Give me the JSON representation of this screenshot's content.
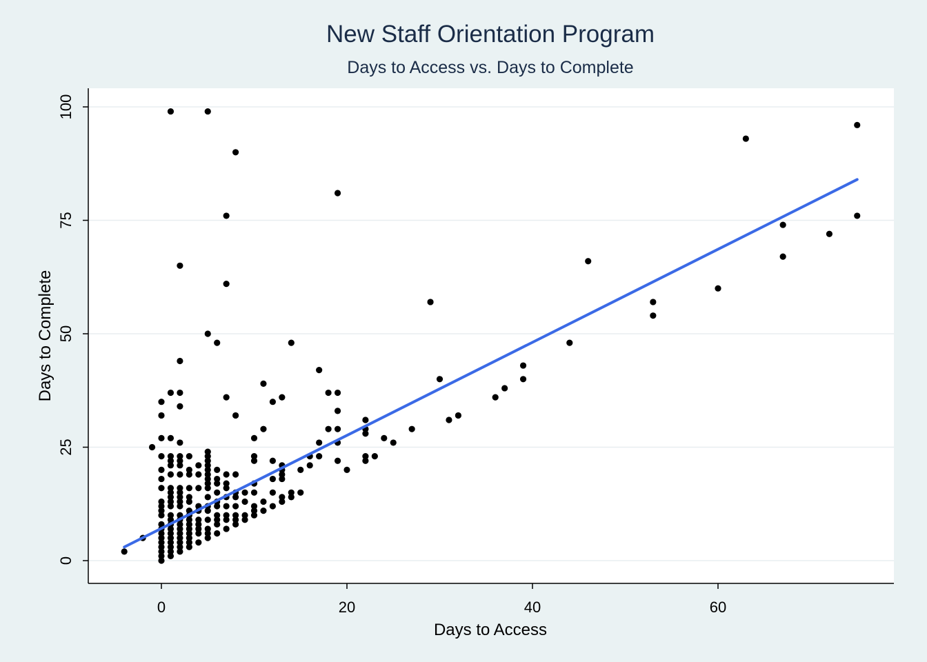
{
  "chart_data": {
    "type": "scatter",
    "title": "New Staff Orientation Program",
    "subtitle": "Days to Access vs. Days to Complete",
    "xlabel": "Days to Access",
    "ylabel": "Days to Complete",
    "xlim": [
      -8,
      79
    ],
    "ylim": [
      -5,
      104
    ],
    "xticks": [
      0,
      20,
      40,
      60
    ],
    "xtick_labels": [
      "0",
      "20",
      "40",
      "60"
    ],
    "yticks": [
      0,
      25,
      50,
      75,
      100
    ],
    "ytick_labels": [
      "0",
      "25",
      "50",
      "75",
      "100"
    ],
    "grid": "horizontal",
    "colors": {
      "background": "#eaf2f3",
      "plot_bg": "#ffffff",
      "points": "#000000",
      "fit_line": "#3b6ae6",
      "grid": "#e8eef0",
      "title": "#1a2c47"
    },
    "fit_line": {
      "x": [
        -4,
        75
      ],
      "y": [
        3,
        84
      ]
    },
    "points": [
      [
        -4,
        2
      ],
      [
        -2,
        5
      ],
      [
        -1,
        25
      ],
      [
        0,
        0
      ],
      [
        0,
        1
      ],
      [
        0,
        2
      ],
      [
        0,
        3
      ],
      [
        0,
        4
      ],
      [
        0,
        5
      ],
      [
        0,
        6
      ],
      [
        0,
        7
      ],
      [
        0,
        8
      ],
      [
        0,
        10
      ],
      [
        0,
        11
      ],
      [
        0,
        12
      ],
      [
        0,
        13
      ],
      [
        0,
        16
      ],
      [
        0,
        18
      ],
      [
        0,
        20
      ],
      [
        0,
        23
      ],
      [
        0,
        27
      ],
      [
        0,
        32
      ],
      [
        0,
        35
      ],
      [
        1,
        1
      ],
      [
        1,
        2
      ],
      [
        1,
        3
      ],
      [
        1,
        4
      ],
      [
        1,
        5
      ],
      [
        1,
        6
      ],
      [
        1,
        7
      ],
      [
        1,
        8
      ],
      [
        1,
        9
      ],
      [
        1,
        10
      ],
      [
        1,
        12
      ],
      [
        1,
        13
      ],
      [
        1,
        14
      ],
      [
        1,
        15
      ],
      [
        1,
        16
      ],
      [
        1,
        19
      ],
      [
        1,
        21
      ],
      [
        1,
        22
      ],
      [
        1,
        23
      ],
      [
        1,
        27
      ],
      [
        1,
        37
      ],
      [
        1,
        99
      ],
      [
        2,
        2
      ],
      [
        2,
        3
      ],
      [
        2,
        4
      ],
      [
        2,
        5
      ],
      [
        2,
        6
      ],
      [
        2,
        7
      ],
      [
        2,
        8
      ],
      [
        2,
        9
      ],
      [
        2,
        10
      ],
      [
        2,
        12
      ],
      [
        2,
        13
      ],
      [
        2,
        14
      ],
      [
        2,
        15
      ],
      [
        2,
        16
      ],
      [
        2,
        19
      ],
      [
        2,
        21
      ],
      [
        2,
        22
      ],
      [
        2,
        23
      ],
      [
        2,
        26
      ],
      [
        2,
        34
      ],
      [
        2,
        37
      ],
      [
        2,
        44
      ],
      [
        2,
        65
      ],
      [
        3,
        3
      ],
      [
        3,
        4
      ],
      [
        3,
        5
      ],
      [
        3,
        6
      ],
      [
        3,
        7
      ],
      [
        3,
        8
      ],
      [
        3,
        9
      ],
      [
        3,
        10
      ],
      [
        3,
        11
      ],
      [
        3,
        13
      ],
      [
        3,
        14
      ],
      [
        3,
        16
      ],
      [
        3,
        19
      ],
      [
        3,
        20
      ],
      [
        3,
        23
      ],
      [
        4,
        4
      ],
      [
        4,
        6
      ],
      [
        4,
        7
      ],
      [
        4,
        8
      ],
      [
        4,
        9
      ],
      [
        4,
        11
      ],
      [
        4,
        12
      ],
      [
        4,
        16
      ],
      [
        4,
        19
      ],
      [
        4,
        21
      ],
      [
        5,
        5
      ],
      [
        5,
        6
      ],
      [
        5,
        7
      ],
      [
        5,
        9
      ],
      [
        5,
        11
      ],
      [
        5,
        12
      ],
      [
        5,
        14
      ],
      [
        5,
        16
      ],
      [
        5,
        17
      ],
      [
        5,
        18
      ],
      [
        5,
        19
      ],
      [
        5,
        20
      ],
      [
        5,
        21
      ],
      [
        5,
        22
      ],
      [
        5,
        23
      ],
      [
        5,
        24
      ],
      [
        5,
        50
      ],
      [
        5,
        99
      ],
      [
        6,
        6
      ],
      [
        6,
        8
      ],
      [
        6,
        9
      ],
      [
        6,
        10
      ],
      [
        6,
        12
      ],
      [
        6,
        13
      ],
      [
        6,
        15
      ],
      [
        6,
        17
      ],
      [
        6,
        18
      ],
      [
        6,
        20
      ],
      [
        6,
        48
      ],
      [
        7,
        7
      ],
      [
        7,
        9
      ],
      [
        7,
        10
      ],
      [
        7,
        12
      ],
      [
        7,
        14
      ],
      [
        7,
        16
      ],
      [
        7,
        17
      ],
      [
        7,
        19
      ],
      [
        7,
        36
      ],
      [
        7,
        61
      ],
      [
        7,
        76
      ],
      [
        8,
        8
      ],
      [
        8,
        9
      ],
      [
        8,
        10
      ],
      [
        8,
        12
      ],
      [
        8,
        14
      ],
      [
        8,
        15
      ],
      [
        8,
        19
      ],
      [
        8,
        32
      ],
      [
        8,
        90
      ],
      [
        9,
        9
      ],
      [
        9,
        10
      ],
      [
        9,
        13
      ],
      [
        9,
        15
      ],
      [
        10,
        10
      ],
      [
        10,
        11
      ],
      [
        10,
        12
      ],
      [
        10,
        15
      ],
      [
        10,
        17
      ],
      [
        10,
        22
      ],
      [
        10,
        23
      ],
      [
        10,
        27
      ],
      [
        11,
        11
      ],
      [
        11,
        13
      ],
      [
        11,
        29
      ],
      [
        11,
        39
      ],
      [
        12,
        12
      ],
      [
        12,
        15
      ],
      [
        12,
        18
      ],
      [
        12,
        22
      ],
      [
        12,
        35
      ],
      [
        13,
        13
      ],
      [
        13,
        14
      ],
      [
        13,
        18
      ],
      [
        13,
        19
      ],
      [
        13,
        20
      ],
      [
        13,
        21
      ],
      [
        13,
        36
      ],
      [
        14,
        14
      ],
      [
        14,
        15
      ],
      [
        14,
        48
      ],
      [
        15,
        15
      ],
      [
        15,
        20
      ],
      [
        16,
        21
      ],
      [
        16,
        23
      ],
      [
        17,
        23
      ],
      [
        17,
        26
      ],
      [
        17,
        42
      ],
      [
        18,
        29
      ],
      [
        18,
        37
      ],
      [
        19,
        22
      ],
      [
        19,
        26
      ],
      [
        19,
        29
      ],
      [
        19,
        33
      ],
      [
        19,
        37
      ],
      [
        19,
        81
      ],
      [
        20,
        20
      ],
      [
        22,
        22
      ],
      [
        22,
        23
      ],
      [
        22,
        28
      ],
      [
        22,
        29
      ],
      [
        22,
        31
      ],
      [
        23,
        23
      ],
      [
        24,
        27
      ],
      [
        25,
        26
      ],
      [
        27,
        29
      ],
      [
        29,
        57
      ],
      [
        30,
        40
      ],
      [
        31,
        31
      ],
      [
        32,
        32
      ],
      [
        36,
        36
      ],
      [
        37,
        38
      ],
      [
        39,
        40
      ],
      [
        39,
        43
      ],
      [
        44,
        48
      ],
      [
        46,
        66
      ],
      [
        53,
        54
      ],
      [
        53,
        57
      ],
      [
        60,
        60
      ],
      [
        63,
        93
      ],
      [
        67,
        67
      ],
      [
        67,
        74
      ],
      [
        72,
        72
      ],
      [
        75,
        76
      ],
      [
        75,
        96
      ]
    ]
  }
}
